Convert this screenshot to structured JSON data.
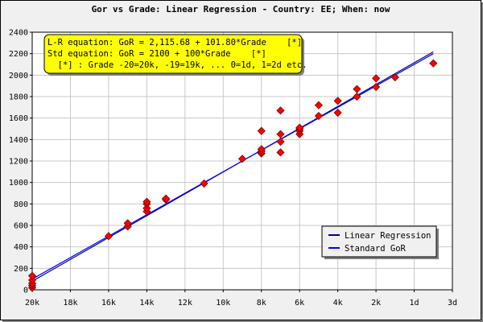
{
  "chart_data": {
    "type": "scatter",
    "title": "Gor vs Grade: Linear Regression - Country: EE; When: now",
    "x_tick_labels": [
      "20k",
      "18k",
      "16k",
      "14k",
      "12k",
      "10k",
      "8k",
      "6k",
      "4k",
      "2k",
      "1d",
      "3d"
    ],
    "x_tick_values": [
      -20,
      -18,
      -16,
      -14,
      -12,
      -10,
      -8,
      -6,
      -4,
      -2,
      0,
      2
    ],
    "xlim": [
      -20,
      2
    ],
    "ylim": [
      0,
      2400
    ],
    "y_ticks": [
      0,
      200,
      400,
      600,
      800,
      1000,
      1200,
      1400,
      1600,
      1800,
      2000,
      2200,
      2400
    ],
    "grid": true,
    "annotation": {
      "lines": [
        "L-R equation: GoR = 2,115.68 + 101.80*Grade    [*]",
        "Std equation: GoR = 2100 + 100*Grade    [*]",
        "  [*] : Grade -20=20k, -19=19k, ... 0=1d, 1=2d etc."
      ],
      "background": "#ffff00"
    },
    "lines": [
      {
        "name": "Linear Regression",
        "intercept": 2115.68,
        "slope": 101.8,
        "color": "#00008b"
      },
      {
        "name": "Standard GoR",
        "intercept": 2100,
        "slope": 100,
        "color": "#0000ff"
      }
    ],
    "legend_position": "bottom-right",
    "points_color": "#ff0000",
    "points": [
      {
        "x": -20,
        "y": 20
      },
      {
        "x": -20,
        "y": 40
      },
      {
        "x": -20,
        "y": 60
      },
      {
        "x": -20,
        "y": 90
      },
      {
        "x": -20,
        "y": 130
      },
      {
        "x": -16,
        "y": 500
      },
      {
        "x": -15,
        "y": 590
      },
      {
        "x": -15,
        "y": 620
      },
      {
        "x": -14,
        "y": 730
      },
      {
        "x": -14,
        "y": 760
      },
      {
        "x": -14,
        "y": 800
      },
      {
        "x": -14,
        "y": 820
      },
      {
        "x": -13,
        "y": 840
      },
      {
        "x": -13,
        "y": 850
      },
      {
        "x": -11,
        "y": 990
      },
      {
        "x": -9,
        "y": 1220
      },
      {
        "x": -8,
        "y": 1270
      },
      {
        "x": -8,
        "y": 1290
      },
      {
        "x": -8,
        "y": 1310
      },
      {
        "x": -8,
        "y": 1480
      },
      {
        "x": -7,
        "y": 1280
      },
      {
        "x": -7,
        "y": 1380
      },
      {
        "x": -7,
        "y": 1450
      },
      {
        "x": -7,
        "y": 1670
      },
      {
        "x": -6,
        "y": 1450
      },
      {
        "x": -6,
        "y": 1480
      },
      {
        "x": -6,
        "y": 1500
      },
      {
        "x": -6,
        "y": 1510
      },
      {
        "x": -5,
        "y": 1620
      },
      {
        "x": -5,
        "y": 1720
      },
      {
        "x": -4,
        "y": 1650
      },
      {
        "x": -4,
        "y": 1760
      },
      {
        "x": -3,
        "y": 1800
      },
      {
        "x": -3,
        "y": 1870
      },
      {
        "x": -2,
        "y": 1890
      },
      {
        "x": -2,
        "y": 1970
      },
      {
        "x": -1,
        "y": 1980
      },
      {
        "x": 1,
        "y": 2110
      }
    ]
  }
}
